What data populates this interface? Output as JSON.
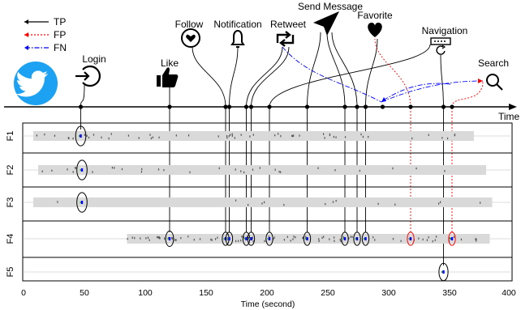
{
  "legend": [
    {
      "label": "TP",
      "color": "#000000",
      "style": "solid"
    },
    {
      "label": "FP",
      "color": "#ff0000",
      "style": "dotted"
    },
    {
      "label": "FN",
      "color": "#0000ff",
      "style": "dashdot"
    }
  ],
  "events": {
    "login": "Login",
    "like": "Like",
    "follow": "Follow",
    "notification": "Notification",
    "retweet": "Retweet",
    "send_message": "Send Message",
    "favorite": "Favorite",
    "navigation": "Navigation",
    "search": "Search"
  },
  "timeline_label": "Time",
  "rows": [
    "F1",
    "F2",
    "F3",
    "F4",
    "F5"
  ],
  "x_axis": {
    "title": "Time (second)",
    "ticks": [
      "0",
      "50",
      "100",
      "150",
      "200",
      "250",
      "300",
      "350",
      "400"
    ]
  },
  "icons": [
    "twitter-logo",
    "login-icon",
    "like-icon",
    "follow-icon",
    "notification-icon",
    "retweet-icon",
    "send-message-icon",
    "favorite-icon",
    "navigation-icon",
    "search-icon"
  ],
  "colors": {
    "tp": "#000000",
    "fp": "#ff0000",
    "fn": "#0000ff",
    "twitter": "#1da1f2",
    "band": "#d9d9d9"
  }
}
